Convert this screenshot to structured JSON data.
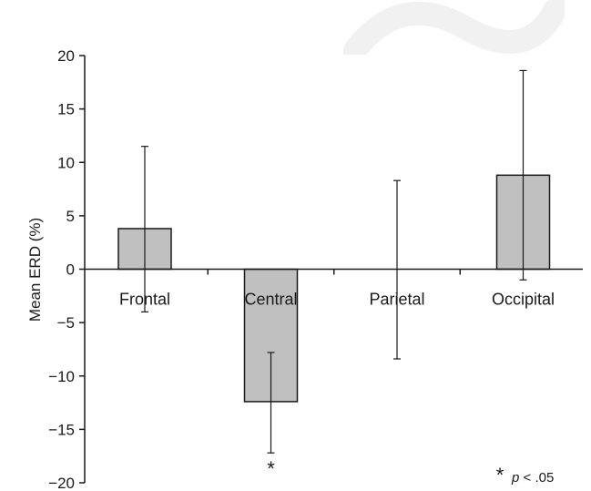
{
  "chart_data": {
    "type": "bar",
    "categories": [
      "Frontal",
      "Central",
      "Parietal",
      "Occipital"
    ],
    "values": [
      3.8,
      -12.4,
      0,
      8.8
    ],
    "error_low": [
      -4.0,
      -17.2,
      -8.4,
      -1.0
    ],
    "error_high": [
      11.5,
      -7.8,
      8.3,
      18.6
    ],
    "significance_markers": [
      "",
      "*",
      "",
      ""
    ],
    "note": "* p < .05",
    "note_star": "*",
    "note_text": "p < .05",
    "title": "",
    "xlabel": "",
    "ylabel": "Mean ERD (%)",
    "ylim": [
      -20,
      20
    ],
    "yticks": [
      20,
      15,
      10,
      5,
      0,
      -5,
      -10,
      -15,
      -20
    ],
    "ytick_labels": [
      "20",
      "15",
      "10",
      "5",
      "0",
      "−5",
      "−10",
      "−15",
      "−20"
    ],
    "grid": false,
    "legend": "none",
    "bar_color": "#c0c0c0",
    "bar_edge_color": "#1a1a1a",
    "watermark_color": "#f1f1f1"
  }
}
